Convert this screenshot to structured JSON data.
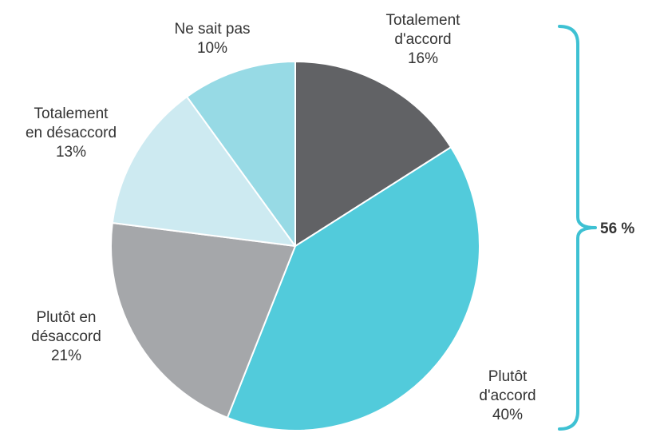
{
  "chart_data": {
    "type": "pie",
    "start_angle_deg": 0,
    "direction": "clockwise",
    "slices": [
      {
        "label_lines": [
          "Totalement",
          "d'accord"
        ],
        "value": 16,
        "value_label": "16%",
        "color": "#616265"
      },
      {
        "label_lines": [
          "Plutôt",
          "d'accord"
        ],
        "value": 40,
        "value_label": "40%",
        "color": "#52cbdb"
      },
      {
        "label_lines": [
          "Plutôt en",
          "désaccord"
        ],
        "value": 21,
        "value_label": "21%",
        "color": "#a5a7aa"
      },
      {
        "label_lines": [
          "Totalement",
          "en désaccord"
        ],
        "value": 13,
        "value_label": "13%",
        "color": "#cdeaf1"
      },
      {
        "label_lines": [
          "Ne sait pas"
        ],
        "value": 10,
        "value_label": "10%",
        "color": "#97dae5"
      }
    ],
    "bracket": {
      "label": "56 %",
      "color": "#3ec1d3"
    }
  }
}
